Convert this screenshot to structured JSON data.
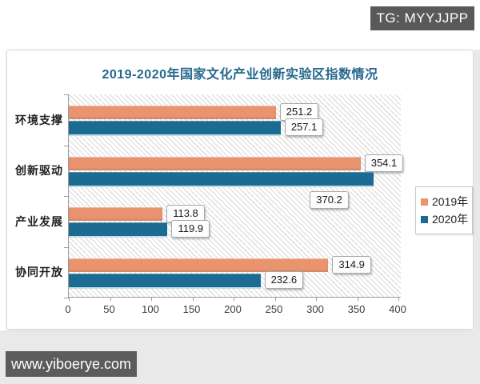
{
  "watermarks": {
    "tg_badge": "TG: MYYJJPP",
    "site_badge": "www.yiboerye.com"
  },
  "chart_data": {
    "type": "bar",
    "orientation": "horizontal",
    "title": "2019-2020年国家文化产业创新实验区指数情况",
    "categories": [
      "环境支撑",
      "创新驱动",
      "产业发展",
      "协同开放"
    ],
    "series": [
      {
        "name": "2019年",
        "color": "#e9946f",
        "values": [
          251.2,
          354.1,
          113.8,
          314.9
        ]
      },
      {
        "name": "2020年",
        "color": "#1c6b93",
        "values": [
          257.1,
          370.2,
          119.9,
          232.6
        ]
      }
    ],
    "value_labels": [
      "251.2",
      "257.1",
      "354.1",
      "370.2",
      "113.8",
      "119.9",
      "314.9",
      "232.6"
    ],
    "x_ticks": [
      0,
      50,
      100,
      150,
      200,
      250,
      300,
      350,
      400
    ],
    "xlim": [
      0,
      400
    ],
    "xlabel": "",
    "ylabel": "",
    "grid": false,
    "legend_position": "right",
    "plot_background": "diagonal-hatch"
  },
  "colors": {
    "title": "#26688c",
    "bar_2019": "#e9946f",
    "bar_2020": "#1c6b93",
    "badge_background": "#595959",
    "page_band": "#e9e9e9",
    "axis": "#9b9b9b"
  }
}
